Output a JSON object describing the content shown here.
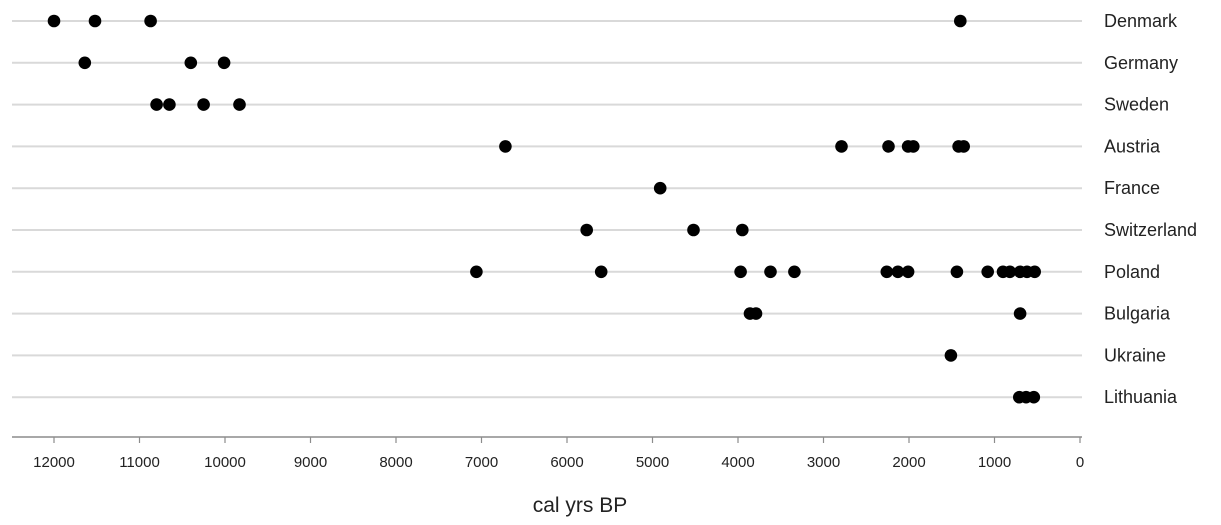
{
  "chart_data": {
    "type": "scatter",
    "title": "",
    "xlabel": "cal yrs BP",
    "ylabel": "",
    "xlim": [
      12500,
      0
    ],
    "x_reversed": true,
    "x_ticks": [
      12000,
      11000,
      10000,
      9000,
      8000,
      7000,
      6000,
      5000,
      4000,
      3000,
      2000,
      1000,
      0
    ],
    "grid": "horizontal",
    "legend": "none",
    "marker_color": "#000000",
    "categories": [
      "Denmark",
      "Germany",
      "Sweden",
      "Austria",
      "France",
      "Switzerland",
      "Poland",
      "Bulgaria",
      "Ukraine",
      "Lithuania"
    ],
    "series": [
      {
        "category": "Denmark",
        "x": [
          12000,
          11520,
          10870,
          1400
        ]
      },
      {
        "category": "Germany",
        "x": [
          11640,
          10400,
          10010
        ]
      },
      {
        "category": "Sweden",
        "x": [
          10800,
          10650,
          10250,
          9830
        ]
      },
      {
        "category": "Austria",
        "x": [
          6720,
          2790,
          2240,
          2010,
          1950,
          1420,
          1360
        ]
      },
      {
        "category": "France",
        "x": [
          4910
        ]
      },
      {
        "category": "Switzerland",
        "x": [
          5770,
          4520,
          3950
        ]
      },
      {
        "category": "Poland",
        "x": [
          7060,
          5600,
          3970,
          3620,
          3340,
          2260,
          2130,
          2010,
          1440,
          1080,
          900,
          820,
          700,
          620,
          530
        ]
      },
      {
        "category": "Bulgaria",
        "x": [
          3860,
          3790,
          700
        ]
      },
      {
        "category": "Ukraine",
        "x": [
          1510
        ]
      },
      {
        "category": "Lithuania",
        "x": [
          710,
          630,
          540
        ]
      }
    ]
  }
}
